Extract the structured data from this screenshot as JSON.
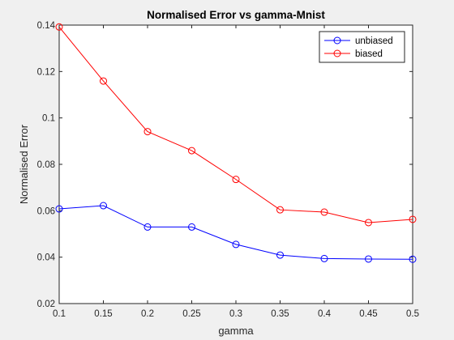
{
  "chart_data": {
    "type": "line",
    "title": "Normalised Error vs gamma-Mnist",
    "xlabel": "gamma",
    "ylabel": "Normalised Error",
    "xlim": [
      0.1,
      0.5
    ],
    "ylim": [
      0.02,
      0.14
    ],
    "xticks": [
      "0.1",
      "0.15",
      "0.2",
      "0.25",
      "0.3",
      "0.35",
      "0.4",
      "0.45",
      "0.5"
    ],
    "yticks": [
      "0.02",
      "0.04",
      "0.06",
      "0.08",
      "0.1",
      "0.12",
      "0.14"
    ],
    "x": [
      0.1,
      0.15,
      0.2,
      0.25,
      0.3,
      0.35,
      0.4,
      0.45,
      0.5
    ],
    "grid": false,
    "legend_position": "top-right",
    "series": [
      {
        "name": "unbiased",
        "color": "#0000ff",
        "marker": "circle",
        "values": [
          0.0608,
          0.0622,
          0.053,
          0.053,
          0.0455,
          0.0409,
          0.0394,
          0.0392,
          0.0391
        ]
      },
      {
        "name": "biased",
        "color": "#ff0000",
        "marker": "circle",
        "values": [
          0.1392,
          0.1159,
          0.0941,
          0.0859,
          0.0735,
          0.0604,
          0.0594,
          0.0549,
          0.0563
        ]
      }
    ]
  }
}
